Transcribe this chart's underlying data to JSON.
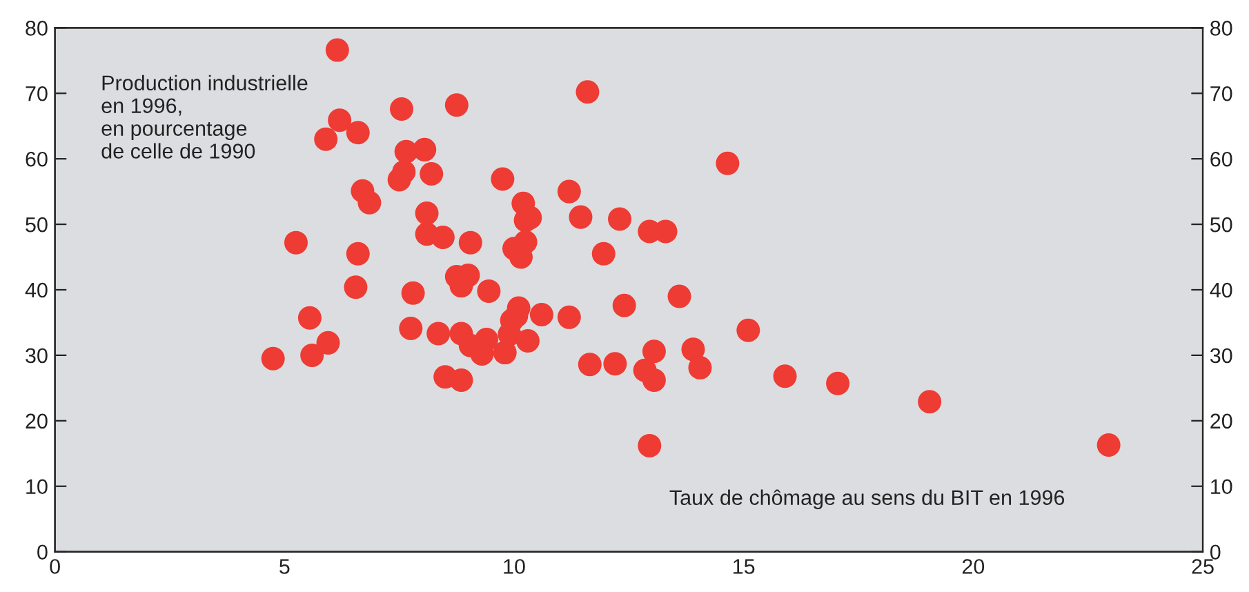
{
  "chart_data": {
    "type": "scatter",
    "xlabel": "Taux de chômage au sens du BIT en 1996",
    "ylabel": "Production industrielle\nen 1996,\nen pourcentage\nde celle de 1990",
    "x": [
      4.75,
      5.25,
      5.55,
      5.6,
      5.95,
      5.9,
      6.15,
      6.2,
      6.55,
      6.6,
      6.6,
      6.7,
      6.85,
      7.5,
      7.55,
      7.6,
      7.65,
      7.75,
      7.8,
      8.05,
      8.1,
      8.1,
      8.2,
      8.35,
      8.45,
      8.5,
      8.75,
      8.75,
      8.85,
      8.85,
      8.85,
      9.0,
      9.05,
      9.05,
      9.3,
      9.4,
      9.45,
      9.75,
      9.8,
      9.9,
      9.95,
      10.0,
      10.05,
      10.1,
      10.15,
      10.2,
      10.25,
      10.25,
      10.3,
      10.35,
      10.6,
      11.2,
      11.2,
      11.45,
      11.6,
      11.65,
      11.95,
      12.2,
      12.3,
      12.4,
      12.85,
      12.95,
      12.95,
      13.05,
      13.05,
      13.3,
      13.6,
      13.9,
      14.05,
      14.65,
      15.1,
      15.9,
      17.05,
      19.05,
      22.95
    ],
    "values": [
      29.5,
      47.2,
      35.7,
      30.0,
      31.9,
      63.0,
      76.6,
      65.9,
      40.4,
      45.5,
      64.0,
      55.1,
      53.3,
      56.8,
      67.6,
      58.0,
      61.1,
      34.1,
      39.5,
      61.4,
      51.7,
      48.5,
      57.7,
      33.3,
      48.0,
      26.7,
      68.2,
      42.0,
      40.6,
      33.3,
      26.2,
      42.2,
      47.2,
      31.5,
      30.2,
      32.4,
      39.8,
      56.9,
      30.4,
      33.2,
      35.3,
      46.3,
      36.0,
      37.2,
      45.0,
      53.2,
      50.6,
      47.3,
      32.2,
      51.0,
      36.2,
      55.0,
      35.8,
      51.1,
      70.2,
      28.6,
      45.5,
      28.7,
      50.8,
      37.6,
      27.7,
      48.9,
      16.2,
      30.6,
      26.2,
      48.9,
      39.0,
      30.9,
      28.1,
      59.3,
      33.8,
      26.8,
      25.7,
      22.9,
      16.3
    ],
    "color": "#ee3b33",
    "marker": "circle",
    "xlim": [
      0,
      25
    ],
    "xticks": [
      0,
      5,
      10,
      15,
      20,
      25
    ],
    "ylim": [
      0,
      80
    ],
    "yticks": [
      0,
      10,
      20,
      30,
      40,
      50,
      60,
      70,
      80
    ],
    "y2lim": [
      0,
      80
    ],
    "y2ticks": [
      0,
      10,
      20,
      30,
      40,
      50,
      60,
      70,
      80
    ],
    "grid": false
  }
}
